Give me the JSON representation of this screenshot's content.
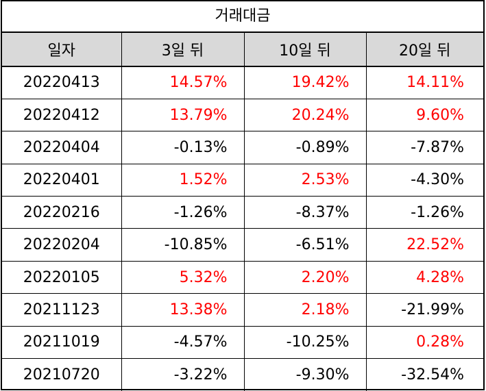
{
  "title": "거래대금",
  "headers": [
    "일자",
    "3일 뒤",
    "10일 뒤",
    "20일 뒤"
  ],
  "colors": {
    "positive": "#ff0000",
    "negative": "#000000",
    "header_bg": "#d9d9d9"
  },
  "rows": [
    {
      "date": "20220413",
      "d3": "14.57%",
      "d10": "19.42%",
      "d20": "14.11%"
    },
    {
      "date": "20220412",
      "d3": "13.79%",
      "d10": "20.24%",
      "d20": "9.60%"
    },
    {
      "date": "20220404",
      "d3": "-0.13%",
      "d10": "-0.89%",
      "d20": "-7.87%"
    },
    {
      "date": "20220401",
      "d3": "1.52%",
      "d10": "2.53%",
      "d20": "-4.30%"
    },
    {
      "date": "20220216",
      "d3": "-1.26%",
      "d10": "-8.37%",
      "d20": "-1.26%"
    },
    {
      "date": "20220204",
      "d3": "-10.85%",
      "d10": "-6.51%",
      "d20": "22.52%"
    },
    {
      "date": "20220105",
      "d3": "5.32%",
      "d10": "2.20%",
      "d20": "4.28%"
    },
    {
      "date": "20211123",
      "d3": "13.38%",
      "d10": "2.18%",
      "d20": "-21.99%"
    },
    {
      "date": "20211019",
      "d3": "-4.57%",
      "d10": "-10.25%",
      "d20": "0.28%"
    },
    {
      "date": "20210720",
      "d3": "-3.22%",
      "d10": "-9.30%",
      "d20": "-32.54%"
    }
  ]
}
